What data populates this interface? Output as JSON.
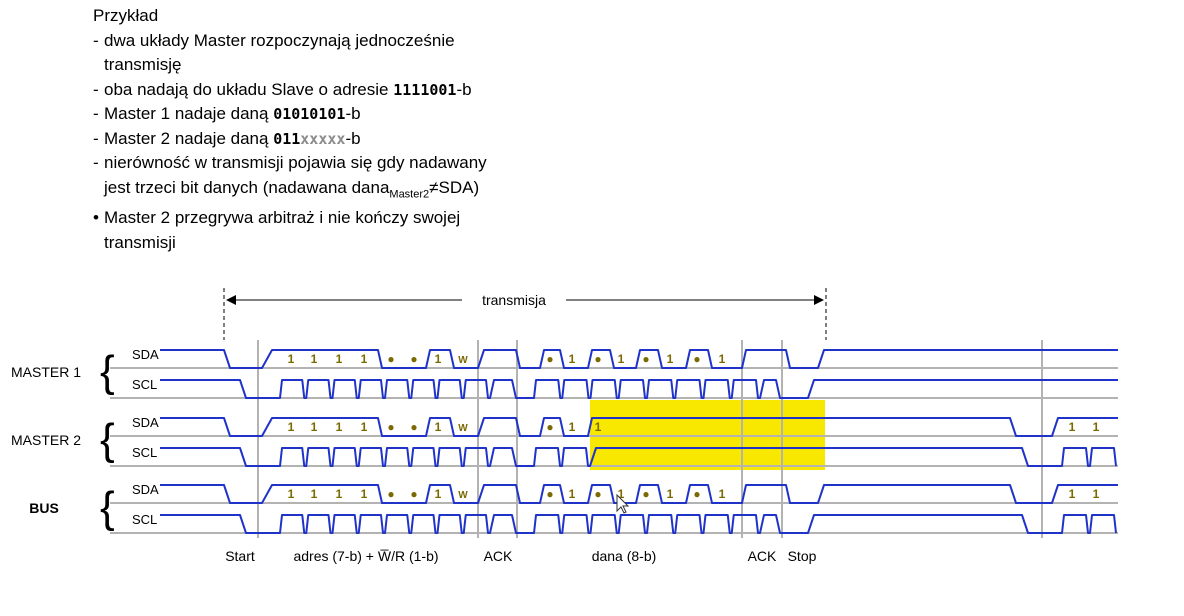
{
  "notes": {
    "title": "Przykład",
    "dash": "-",
    "bullet": "•",
    "item1_line1": "dwa układy Master rozpoczynają jednocześnie",
    "item1_line2": "transmisję",
    "item2_prefix": "oba nadają do układu Slave o adresie",
    "item2_code": "1111001",
    "item2_suffix": "-b",
    "item3_prefix": "Master 1 nadaje daną",
    "item3_code": "01010101",
    "item3_suffix": "-b",
    "item4_prefix": "Master 2 nadaje daną",
    "item4_code_known": "011",
    "item4_code_unknown": "xxxxx",
    "item4_suffix": "-b",
    "item5_line1": "nierówność w transmisji pojawia się gdy nadawany",
    "item5_line2_prefix": "jest trzeci bit danych (nadawana dana",
    "item5_line2_sub": "Master2",
    "item5_line2_suffix": "≠SDA)",
    "item6_line1": "Master 2 przegrywa arbitraż i nie kończy swojej",
    "item6_line2": "transmisji"
  },
  "diagram": {
    "span_label": "transmisja",
    "groups": [
      {
        "name": "MASTER 1",
        "signals": [
          "SDA",
          "SCL"
        ]
      },
      {
        "name": "MASTER 2",
        "signals": [
          "SDA",
          "SCL"
        ]
      },
      {
        "name": "BUS",
        "signals": [
          "SDA",
          "SCL"
        ]
      }
    ],
    "bit_labels": {
      "master1": [
        "1",
        "1",
        "1",
        "1",
        "●",
        "●",
        "1",
        "W",
        "●",
        "1",
        "●",
        "1",
        "●",
        "1",
        "●",
        "1"
      ],
      "master2": [
        "1",
        "1",
        "1",
        "1",
        "●",
        "●",
        "1",
        "W",
        "●",
        "1",
        "1",
        "1",
        "1"
      ],
      "bus": [
        "1",
        "1",
        "1",
        "1",
        "●",
        "●",
        "1",
        "W",
        "●",
        "1",
        "●",
        "1",
        "●",
        "1",
        "●",
        "1",
        "1",
        "1"
      ]
    },
    "phase_labels": [
      "Start",
      "adres (7-b) + W̅/R (1-b)",
      "ACK",
      "dana (8-b)",
      "ACK",
      "Stop"
    ],
    "colors": {
      "signal": "#1f33c8",
      "guide": "#b3b3b3",
      "highlight": "#f8e800",
      "bit_text": "#7a6a00",
      "axis": "#000000"
    }
  }
}
